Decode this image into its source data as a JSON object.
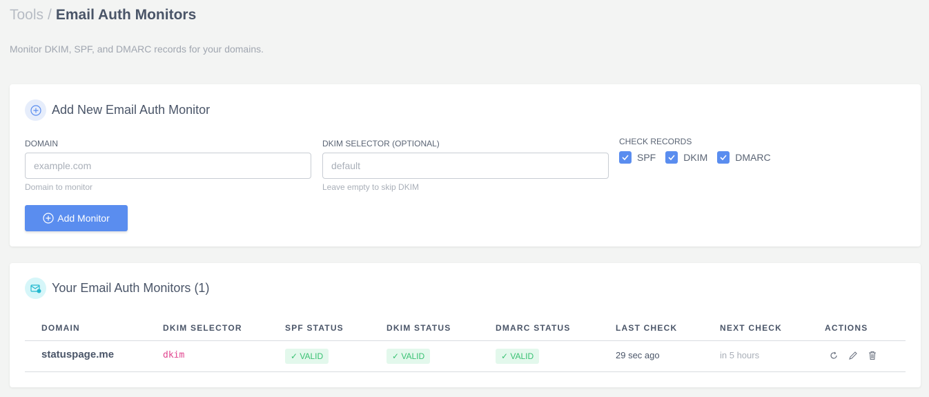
{
  "breadcrumb": {
    "parent": "Tools",
    "separator": "/",
    "current": "Email Auth Monitors"
  },
  "subtitle": "Monitor DKIM, SPF, and DMARC records for your domains.",
  "add_form": {
    "title": "Add New Email Auth Monitor",
    "domain_label": "DOMAIN",
    "domain_placeholder": "example.com",
    "domain_value": "",
    "domain_hint": "Domain to monitor",
    "selector_label": "DKIM SELECTOR (OPTIONAL)",
    "selector_placeholder": "default",
    "selector_value": "",
    "selector_hint": "Leave empty to skip DKIM",
    "check_label": "CHECK RECORDS",
    "checks": [
      {
        "label": "SPF",
        "checked": true
      },
      {
        "label": "DKIM",
        "checked": true
      },
      {
        "label": "DMARC",
        "checked": true
      }
    ],
    "submit_label": "Add Monitor"
  },
  "monitors": {
    "title": "Your Email Auth Monitors (1)",
    "columns": [
      "DOMAIN",
      "DKIM SELECTOR",
      "SPF STATUS",
      "DKIM STATUS",
      "DMARC STATUS",
      "LAST CHECK",
      "NEXT CHECK",
      "ACTIONS"
    ],
    "rows": [
      {
        "domain": "statuspage.me",
        "selector": "dkim",
        "spf": "✓ VALID",
        "dkim": "✓ VALID",
        "dmarc": "✓ VALID",
        "last_check": "29 sec ago",
        "next_check": "in 5 hours",
        "actions": [
          "refresh-icon",
          "edit-icon",
          "trash-icon"
        ]
      }
    ]
  },
  "colors": {
    "accent": "#5a8def",
    "valid_bg": "#e3f8ec",
    "valid_text": "#38c172",
    "selector": "#e0468f"
  }
}
